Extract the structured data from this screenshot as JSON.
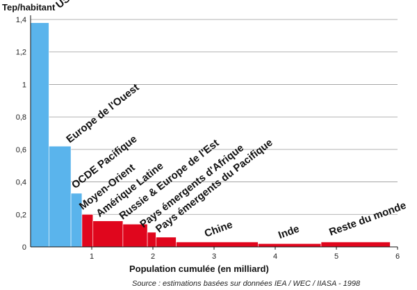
{
  "chart_data": {
    "type": "bar",
    "ylabel": "Tep/habitant",
    "xlabel": "Population cumulée (en milliard)",
    "source": "Source : estimations basées sur données IEA / WEC / IIASA - 1998",
    "xlim": [
      0,
      6
    ],
    "ylim": [
      0,
      1.4
    ],
    "x_ticks": [
      "1",
      "2",
      "3",
      "4",
      "5",
      "6"
    ],
    "y_ticks": [
      "0",
      "0,2",
      "0,4",
      "0,6",
      "0,8",
      "1",
      "1,2",
      "1,4"
    ],
    "colors": {
      "developed": "#5ab4ec",
      "developing": "#e0061d"
    },
    "bars": [
      {
        "label": "USA + Canada",
        "x0": 0.0,
        "x1": 0.3,
        "value": 1.38,
        "group": "developed"
      },
      {
        "label": "Europe de l'Ouest",
        "x0": 0.3,
        "x1": 0.66,
        "value": 0.62,
        "group": "developed"
      },
      {
        "label": "OCDE Pacifique",
        "x0": 0.66,
        "x1": 0.84,
        "value": 0.33,
        "group": "developed"
      },
      {
        "label": "Moyen-Orient",
        "x0": 0.84,
        "x1": 1.02,
        "value": 0.2,
        "group": "developing"
      },
      {
        "label": "Amérique Latine",
        "x0": 1.02,
        "x1": 1.51,
        "value": 0.16,
        "group": "developing"
      },
      {
        "label": "Russie & Europe de l'Est",
        "x0": 1.51,
        "x1": 1.91,
        "value": 0.14,
        "group": "developing"
      },
      {
        "label": "Pays émergents d'Afrique",
        "x0": 1.91,
        "x1": 2.05,
        "value": 0.09,
        "group": "developing"
      },
      {
        "label": "Pays émergents du Pacifique",
        "x0": 2.05,
        "x1": 2.38,
        "value": 0.06,
        "group": "developing"
      },
      {
        "label": "Chine",
        "x0": 2.38,
        "x1": 3.72,
        "value": 0.03,
        "group": "developing"
      },
      {
        "label": "Inde",
        "x0": 3.72,
        "x1": 4.75,
        "value": 0.02,
        "group": "developing"
      },
      {
        "label": "Reste du monde",
        "x0": 4.75,
        "x1": 5.88,
        "value": 0.03,
        "group": "developing"
      }
    ]
  }
}
